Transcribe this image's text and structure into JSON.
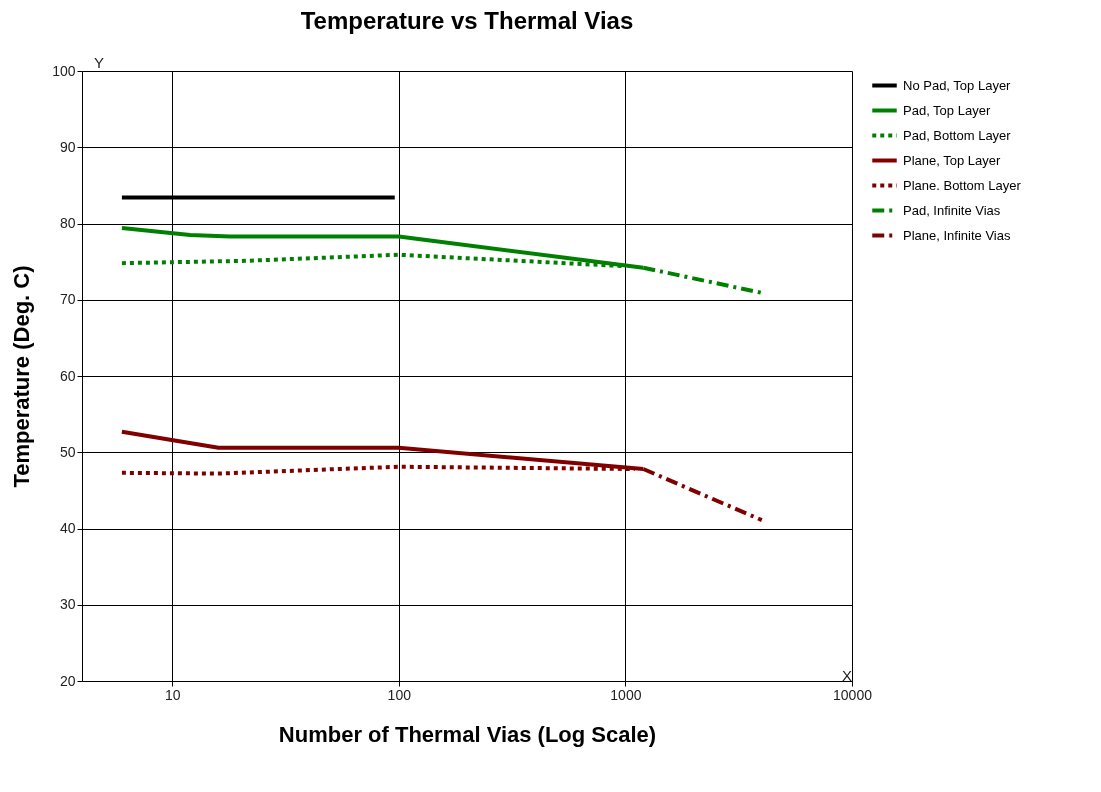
{
  "chart_data": {
    "type": "line",
    "title": "Temperature vs Thermal Vias",
    "xlabel": "Number of Thermal Vias (Log Scale)",
    "ylabel": "Temperature (Deg. C)",
    "annotations": [
      "Y",
      "X"
    ],
    "log": "x",
    "xlim": [
      4,
      10000
    ],
    "xticks": [
      10,
      100,
      1000,
      10000
    ],
    "ylim": [
      20,
      100
    ],
    "yticks": [
      20,
      30,
      40,
      50,
      60,
      70,
      80,
      90,
      100
    ],
    "grid": true,
    "legend": "top right",
    "series": [
      {
        "name": "No Pad, Top Layer",
        "color": "#000000",
        "line_style": "solid",
        "x": [
          6,
          96
        ],
        "values": [
          83.4,
          83.4
        ]
      },
      {
        "name": "Pad, Top Layer",
        "color": "#008000",
        "line_style": "solid",
        "x": [
          6,
          12,
          18,
          100,
          1200
        ],
        "values": [
          79.4,
          78.5,
          78.3,
          78.3,
          74.2
        ]
      },
      {
        "name": "Pad, Bottom Layer",
        "color": "#008000",
        "line_style": "dotted",
        "x": [
          6,
          21,
          100,
          1000
        ],
        "values": [
          74.8,
          75.1,
          75.9,
          74.4
        ]
      },
      {
        "name": "Plane, Top Layer",
        "color": "#800000",
        "line_style": "solid",
        "x": [
          6,
          16,
          100,
          1200
        ],
        "values": [
          52.7,
          50.6,
          50.6,
          47.8
        ]
      },
      {
        "name": "Plane. Bottom Layer",
        "color": "#800000",
        "line_style": "dotted",
        "x": [
          6,
          16,
          100,
          1100
        ],
        "values": [
          47.3,
          47.2,
          48.1,
          47.8
        ]
      },
      {
        "name": "Pad, Infinite Vias",
        "color": "#008000",
        "line_style": "dashed",
        "x": [
          1200,
          4000
        ],
        "values": [
          74.2,
          70.9
        ]
      },
      {
        "name": "Plane, Infinite Vias",
        "color": "#800000",
        "line_style": "dashed",
        "x": [
          1200,
          4000
        ],
        "values": [
          47.8,
          41.1
        ]
      }
    ]
  }
}
